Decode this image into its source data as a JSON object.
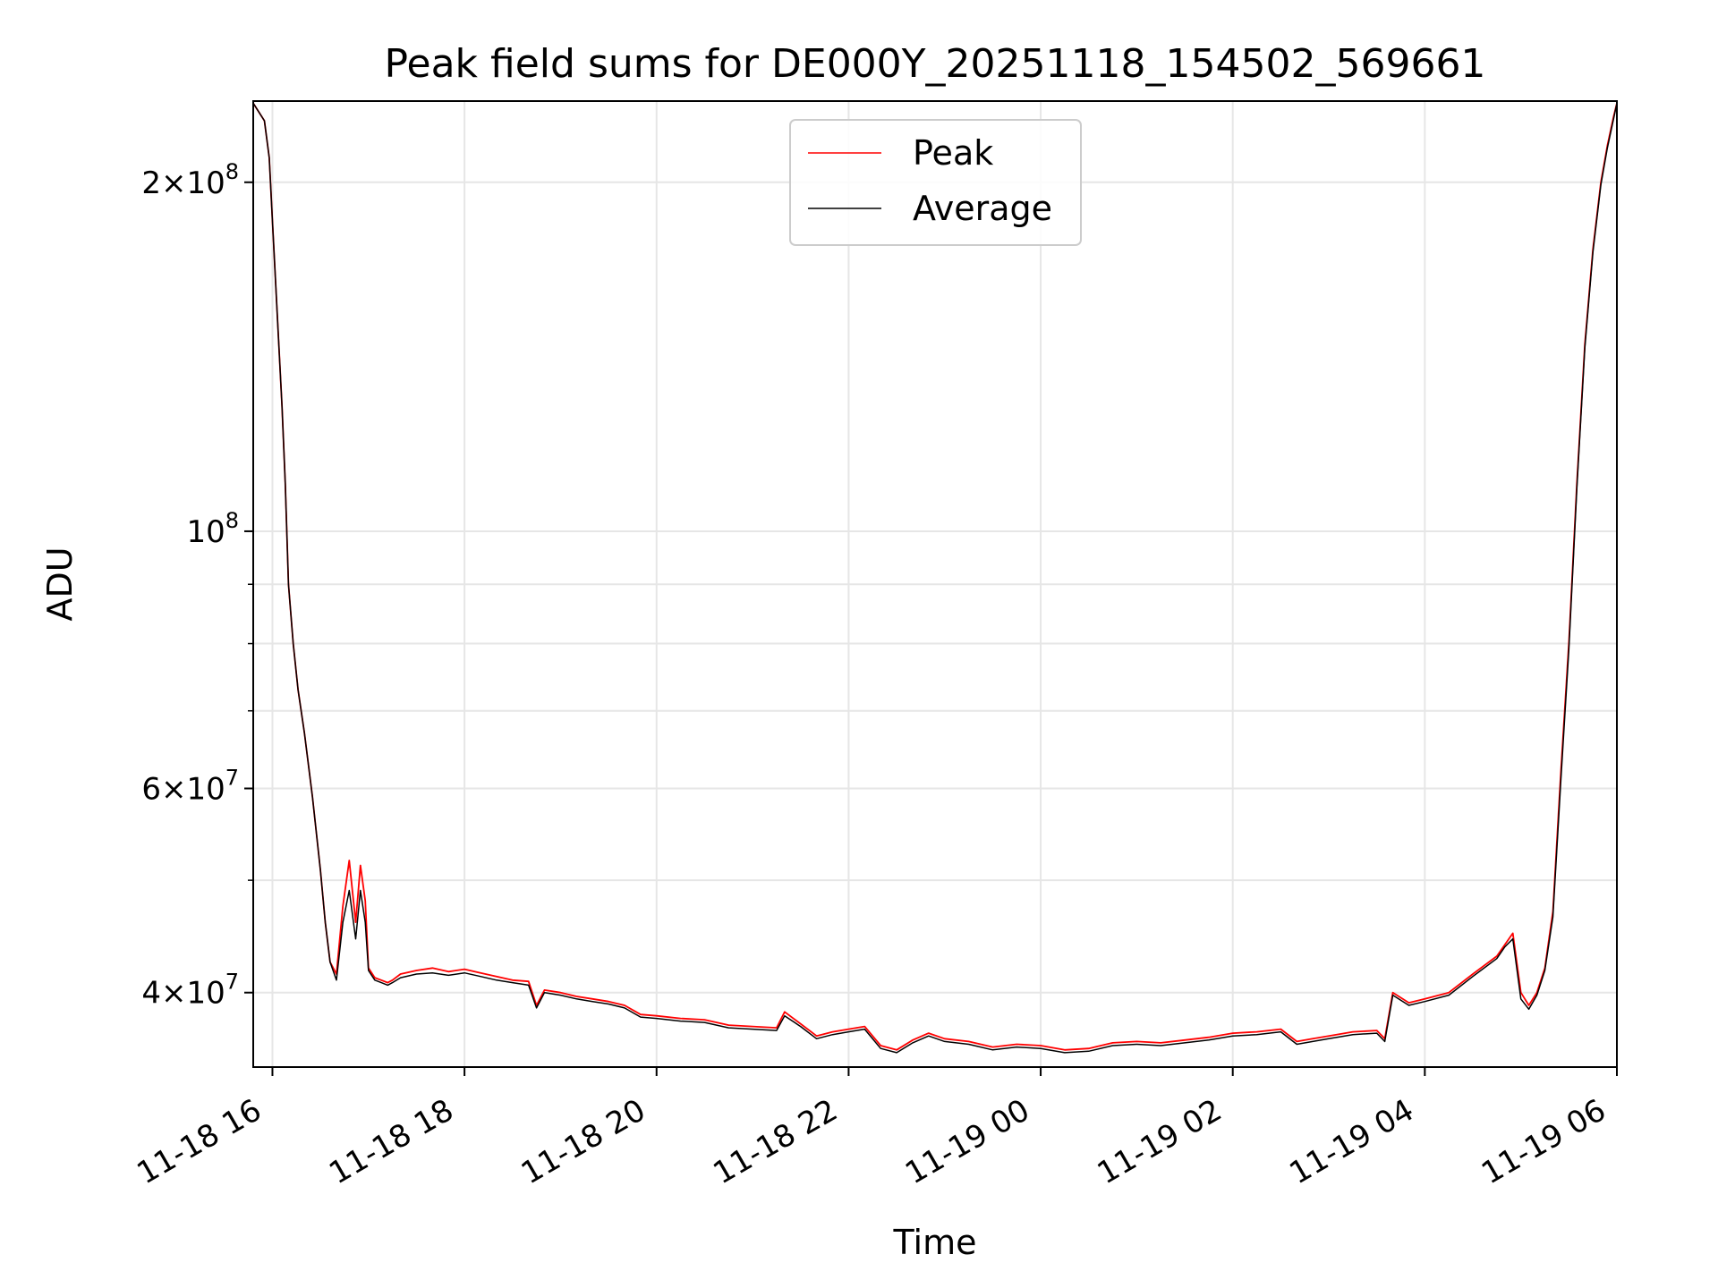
{
  "chart_data": {
    "type": "line",
    "title": "Peak field sums for DE000Y_20251118_154502_569661",
    "xlabel": "Time",
    "ylabel": "ADU",
    "yscale": "log",
    "xlim": [
      "2025-11-18T15:48",
      "2025-11-19T06:00"
    ],
    "ylim": [
      34500000,
      235000000
    ],
    "grid": true,
    "legend": {
      "placement": "top-center"
    },
    "x_ticks": [
      {
        "value": "2025-11-18T16:00",
        "label": "11-18 16"
      },
      {
        "value": "2025-11-18T18:00",
        "label": "11-18 18"
      },
      {
        "value": "2025-11-18T20:00",
        "label": "11-18 20"
      },
      {
        "value": "2025-11-18T22:00",
        "label": "11-18 22"
      },
      {
        "value": "2025-11-19T00:00",
        "label": "11-19 00"
      },
      {
        "value": "2025-11-19T02:00",
        "label": "11-19 02"
      },
      {
        "value": "2025-11-19T04:00",
        "label": "11-19 04"
      },
      {
        "value": "2025-11-19T06:00",
        "label": "11-19 06"
      }
    ],
    "y_ticks_major": [
      {
        "value": 40000000,
        "mantissa": "4",
        "exponent": "7"
      },
      {
        "value": 60000000,
        "mantissa": "6",
        "exponent": "7"
      },
      {
        "value": 100000000,
        "mantissa": "",
        "exponent": "8"
      },
      {
        "value": 200000000,
        "mantissa": "2",
        "exponent": "8"
      }
    ],
    "y_ticks_minor": [
      50000000,
      70000000,
      80000000,
      90000000
    ],
    "series": [
      {
        "name": "Peak",
        "color": "#ff0000",
        "x": [
          "2025-11-18T15:48",
          "2025-11-18T15:55",
          "2025-11-18T15:58",
          "2025-11-18T16:00",
          "2025-11-18T16:06",
          "2025-11-18T16:08",
          "2025-11-18T16:10",
          "2025-11-18T16:13",
          "2025-11-18T16:16",
          "2025-11-18T16:20",
          "2025-11-18T16:25",
          "2025-11-18T16:30",
          "2025-11-18T16:33",
          "2025-11-18T16:36",
          "2025-11-18T16:40",
          "2025-11-18T16:44",
          "2025-11-18T16:48",
          "2025-11-18T16:52",
          "2025-11-18T16:55",
          "2025-11-18T16:58",
          "2025-11-18T17:00",
          "2025-11-18T17:04",
          "2025-11-18T17:08",
          "2025-11-18T17:12",
          "2025-11-18T17:15",
          "2025-11-18T17:20",
          "2025-11-18T17:30",
          "2025-11-18T17:40",
          "2025-11-18T17:50",
          "2025-11-18T18:00",
          "2025-11-18T18:10",
          "2025-11-18T18:20",
          "2025-11-18T18:30",
          "2025-11-18T18:40",
          "2025-11-18T18:45",
          "2025-11-18T18:50",
          "2025-11-18T19:00",
          "2025-11-18T19:10",
          "2025-11-18T19:20",
          "2025-11-18T19:30",
          "2025-11-18T19:40",
          "2025-11-18T19:50",
          "2025-11-18T20:00",
          "2025-11-18T20:15",
          "2025-11-18T20:30",
          "2025-11-18T20:45",
          "2025-11-18T21:00",
          "2025-11-18T21:15",
          "2025-11-18T21:20",
          "2025-11-18T21:30",
          "2025-11-18T21:40",
          "2025-11-18T21:50",
          "2025-11-18T22:00",
          "2025-11-18T22:10",
          "2025-11-18T22:20",
          "2025-11-18T22:30",
          "2025-11-18T22:40",
          "2025-11-18T22:50",
          "2025-11-18T23:00",
          "2025-11-18T23:15",
          "2025-11-18T23:30",
          "2025-11-18T23:45",
          "2025-11-19T00:00",
          "2025-11-19T00:15",
          "2025-11-19T00:30",
          "2025-11-19T00:45",
          "2025-11-19T01:00",
          "2025-11-19T01:15",
          "2025-11-19T01:30",
          "2025-11-19T01:45",
          "2025-11-19T02:00",
          "2025-11-19T02:15",
          "2025-11-19T02:30",
          "2025-11-19T02:40",
          "2025-11-19T02:50",
          "2025-11-19T03:00",
          "2025-11-19T03:15",
          "2025-11-19T03:30",
          "2025-11-19T03:35",
          "2025-11-19T03:40",
          "2025-11-19T03:50",
          "2025-11-19T04:00",
          "2025-11-19T04:15",
          "2025-11-19T04:30",
          "2025-11-19T04:45",
          "2025-11-19T04:50",
          "2025-11-19T04:55",
          "2025-11-19T05:00",
          "2025-11-19T05:05",
          "2025-11-19T05:10",
          "2025-11-19T05:15",
          "2025-11-19T05:20",
          "2025-11-19T05:25",
          "2025-11-19T05:30",
          "2025-11-19T05:35",
          "2025-11-19T05:40",
          "2025-11-19T05:45",
          "2025-11-19T05:50",
          "2025-11-19T05:54",
          "2025-11-19T05:58",
          "2025-11-19T06:00"
        ],
        "y": [
          234000000,
          226000000,
          210000000,
          185000000,
          128000000,
          110000000,
          90000000,
          80000000,
          73000000,
          67000000,
          59000000,
          51000000,
          46000000,
          42500000,
          41500000,
          47500000,
          52000000,
          46000000,
          51500000,
          48000000,
          42000000,
          41200000,
          41000000,
          40800000,
          41000000,
          41500000,
          41800000,
          42000000,
          41700000,
          41900000,
          41600000,
          41300000,
          41000000,
          40900000,
          39000000,
          40200000,
          40000000,
          39700000,
          39500000,
          39300000,
          39000000,
          38300000,
          38200000,
          38000000,
          37900000,
          37500000,
          37400000,
          37300000,
          38500000,
          37600000,
          36700000,
          37000000,
          37200000,
          37400000,
          36000000,
          35700000,
          36400000,
          36900000,
          36500000,
          36300000,
          35900000,
          36100000,
          36000000,
          35700000,
          35800000,
          36200000,
          36300000,
          36200000,
          36400000,
          36600000,
          36900000,
          37000000,
          37200000,
          36300000,
          36500000,
          36700000,
          37000000,
          37100000,
          36500000,
          40000000,
          39200000,
          39500000,
          40000000,
          41500000,
          43000000,
          44000000,
          45000000,
          40000000,
          39000000,
          40000000,
          42000000,
          47000000,
          62000000,
          80000000,
          110000000,
          145000000,
          175000000,
          200000000,
          215000000,
          228000000,
          234000000
        ]
      },
      {
        "name": "Average",
        "color": "#000000",
        "x": [
          "2025-11-18T15:48",
          "2025-11-18T15:55",
          "2025-11-18T15:58",
          "2025-11-18T16:00",
          "2025-11-18T16:06",
          "2025-11-18T16:08",
          "2025-11-18T16:10",
          "2025-11-18T16:13",
          "2025-11-18T16:16",
          "2025-11-18T16:20",
          "2025-11-18T16:25",
          "2025-11-18T16:30",
          "2025-11-18T16:33",
          "2025-11-18T16:36",
          "2025-11-18T16:40",
          "2025-11-18T16:44",
          "2025-11-18T16:48",
          "2025-11-18T16:52",
          "2025-11-18T16:55",
          "2025-11-18T16:58",
          "2025-11-18T17:00",
          "2025-11-18T17:04",
          "2025-11-18T17:08",
          "2025-11-18T17:12",
          "2025-11-18T17:15",
          "2025-11-18T17:20",
          "2025-11-18T17:30",
          "2025-11-18T17:40",
          "2025-11-18T17:50",
          "2025-11-18T18:00",
          "2025-11-18T18:10",
          "2025-11-18T18:20",
          "2025-11-18T18:30",
          "2025-11-18T18:40",
          "2025-11-18T18:45",
          "2025-11-18T18:50",
          "2025-11-18T19:00",
          "2025-11-18T19:10",
          "2025-11-18T19:20",
          "2025-11-18T19:30",
          "2025-11-18T19:40",
          "2025-11-18T19:50",
          "2025-11-18T20:00",
          "2025-11-18T20:15",
          "2025-11-18T20:30",
          "2025-11-18T20:45",
          "2025-11-18T21:00",
          "2025-11-18T21:15",
          "2025-11-18T21:20",
          "2025-11-18T21:30",
          "2025-11-18T21:40",
          "2025-11-18T21:50",
          "2025-11-18T22:00",
          "2025-11-18T22:10",
          "2025-11-18T22:20",
          "2025-11-18T22:30",
          "2025-11-18T22:40",
          "2025-11-18T22:50",
          "2025-11-18T23:00",
          "2025-11-18T23:15",
          "2025-11-18T23:30",
          "2025-11-18T23:45",
          "2025-11-19T00:00",
          "2025-11-19T00:15",
          "2025-11-19T00:30",
          "2025-11-19T00:45",
          "2025-11-19T01:00",
          "2025-11-19T01:15",
          "2025-11-19T01:30",
          "2025-11-19T01:45",
          "2025-11-19T02:00",
          "2025-11-19T02:15",
          "2025-11-19T02:30",
          "2025-11-19T02:40",
          "2025-11-19T02:50",
          "2025-11-19T03:00",
          "2025-11-19T03:15",
          "2025-11-19T03:30",
          "2025-11-19T03:35",
          "2025-11-19T03:40",
          "2025-11-19T03:50",
          "2025-11-19T04:00",
          "2025-11-19T04:15",
          "2025-11-19T04:30",
          "2025-11-19T04:45",
          "2025-11-19T04:50",
          "2025-11-19T04:55",
          "2025-11-19T05:00",
          "2025-11-19T05:05",
          "2025-11-19T05:10",
          "2025-11-19T05:15",
          "2025-11-19T05:20",
          "2025-11-19T05:25",
          "2025-11-19T05:30",
          "2025-11-19T05:35",
          "2025-11-19T05:40",
          "2025-11-19T05:45",
          "2025-11-19T05:50",
          "2025-11-19T05:54",
          "2025-11-19T05:58",
          "2025-11-19T06:00"
        ],
        "y": [
          234000000,
          226000000,
          210000000,
          185000000,
          128000000,
          110000000,
          90000000,
          80000000,
          73000000,
          67000000,
          59000000,
          51000000,
          46000000,
          42500000,
          41000000,
          46000000,
          49000000,
          44500000,
          49000000,
          46000000,
          41800000,
          41000000,
          40800000,
          40600000,
          40800000,
          41200000,
          41500000,
          41600000,
          41400000,
          41600000,
          41300000,
          41000000,
          40800000,
          40600000,
          38800000,
          40000000,
          39800000,
          39500000,
          39300000,
          39100000,
          38800000,
          38100000,
          38000000,
          37800000,
          37700000,
          37300000,
          37200000,
          37100000,
          38200000,
          37400000,
          36500000,
          36800000,
          37000000,
          37200000,
          35800000,
          35500000,
          36200000,
          36700000,
          36300000,
          36100000,
          35700000,
          35900000,
          35800000,
          35500000,
          35600000,
          36000000,
          36100000,
          36000000,
          36200000,
          36400000,
          36700000,
          36800000,
          37000000,
          36100000,
          36300000,
          36500000,
          36800000,
          36900000,
          36300000,
          39800000,
          39000000,
          39300000,
          39800000,
          41300000,
          42800000,
          43800000,
          44500000,
          39500000,
          38700000,
          39800000,
          41800000,
          46500000,
          61000000,
          79000000,
          109000000,
          144000000,
          174000000,
          199000000,
          214000000,
          227000000,
          234000000
        ]
      }
    ]
  }
}
